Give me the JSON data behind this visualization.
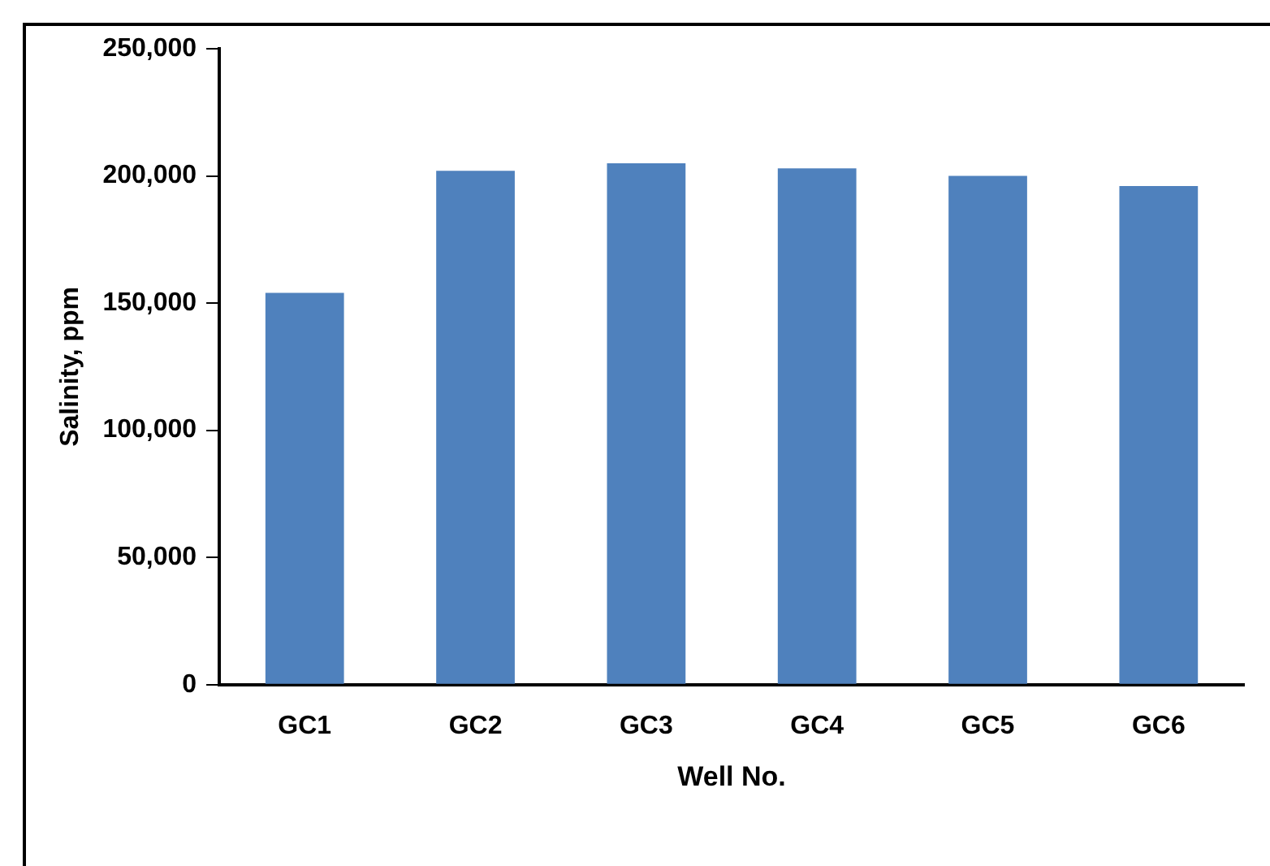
{
  "chart_data": {
    "type": "bar",
    "xlabel": "Well No.",
    "ylabel": "Salinity, ppm",
    "categories": [
      "GC1",
      "GC2",
      "GC3",
      "GC4",
      "GC5",
      "GC6"
    ],
    "values": [
      154000,
      202000,
      205000,
      203000,
      200000,
      196000
    ],
    "color": "#4f81bd",
    "ylim": [
      0,
      250000
    ],
    "yticks": [
      {
        "value": 0,
        "label": "0"
      },
      {
        "value": 50000,
        "label": "50,000"
      },
      {
        "value": 100000,
        "label": "100,000"
      },
      {
        "value": 150000,
        "label": "150,000"
      },
      {
        "value": 200000,
        "label": "200,000"
      },
      {
        "value": 250000,
        "label": "250,000"
      }
    ],
    "grid": false,
    "legend": false
  }
}
